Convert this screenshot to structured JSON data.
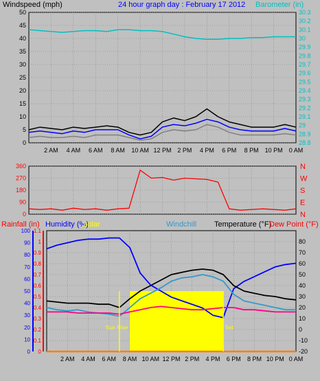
{
  "window": {
    "title": "24 hour graph day : February 17 2012",
    "colors": {
      "background": "#c0c0c0",
      "panel": "#000000",
      "grid": "#808080"
    }
  },
  "chart_data": [
    {
      "type": "line",
      "ylabel_left": "Windspeed (mph)",
      "ylabel_right": "Barometer (in)",
      "x": [
        "12 AM",
        "1 AM",
        "2 AM",
        "3 AM",
        "4 AM",
        "5 AM",
        "6 AM",
        "7 AM",
        "8 AM",
        "9 AM",
        "10 AM",
        "11 AM",
        "12 PM",
        "1 PM",
        "2 PM",
        "3 PM",
        "4 PM",
        "5 PM",
        "6 PM",
        "7 PM",
        "8 PM",
        "9 PM",
        "10 PM",
        "11 PM",
        "12 AM"
      ],
      "x_tick_labels": [
        "2 AM",
        "4 AM",
        "6 AM",
        "8 AM",
        "10 AM",
        "12 PM",
        "2 PM",
        "4 PM",
        "6 PM",
        "8 PM",
        "10 PM",
        "0 AM"
      ],
      "ylim_left": [
        0,
        50
      ],
      "left_ticks": [
        0,
        5,
        10,
        15,
        20,
        25,
        30,
        35,
        40,
        45,
        50
      ],
      "ylim_right": [
        28.8,
        30.3
      ],
      "right_ticks": [
        "28.8",
        "28.9",
        "29",
        "29.1",
        "29.2",
        "29.3",
        "29.4",
        "29.5",
        "29.6",
        "29.7",
        "29.8",
        "29.9",
        "30",
        "30.1",
        "30.2",
        "30.3"
      ],
      "grid": true,
      "series": [
        {
          "color": "#000000",
          "axis": "left",
          "values": [
            5,
            6,
            5.5,
            5,
            6,
            5.5,
            6,
            6.5,
            6,
            4,
            3,
            4,
            8,
            9.5,
            8.5,
            10,
            13,
            10,
            8,
            7,
            6,
            6,
            6,
            7,
            6
          ]
        },
        {
          "color": "#0000ff",
          "axis": "left",
          "values": [
            4,
            4.5,
            4,
            3.5,
            4.5,
            4,
            5,
            5,
            5,
            3,
            1.5,
            2.5,
            6,
            7,
            6.5,
            7.5,
            9,
            8,
            6,
            5,
            4.5,
            4.5,
            4.5,
            5.5,
            4.5
          ]
        },
        {
          "color": "#808080",
          "axis": "left",
          "values": [
            2,
            2.5,
            2,
            2,
            2.5,
            2,
            3,
            3,
            3,
            2,
            1,
            1.5,
            4,
            5,
            4.5,
            5,
            7,
            6,
            4,
            3,
            3,
            3,
            3,
            3.5,
            3
          ]
        },
        {
          "color": "#00c0c0",
          "axis": "right",
          "values": [
            30.1,
            30.09,
            30.08,
            30.07,
            30.08,
            30.09,
            30.09,
            30.08,
            30.1,
            30.1,
            30.09,
            30.09,
            30.08,
            30.05,
            30.02,
            30,
            29.99,
            29.99,
            30,
            30,
            30.01,
            30.01,
            30.02,
            30.02,
            30.02
          ]
        }
      ]
    },
    {
      "type": "line",
      "ylim_left": [
        0,
        360
      ],
      "left_ticks": [
        0,
        90,
        180,
        270,
        360
      ],
      "right_labels": [
        "N",
        "W",
        "S",
        "E",
        "N"
      ],
      "x": [
        "12 AM",
        "1 AM",
        "2 AM",
        "3 AM",
        "4 AM",
        "5 AM",
        "6 AM",
        "7 AM",
        "8 AM",
        "9 AM",
        "10 AM",
        "11 AM",
        "12 PM",
        "1 PM",
        "2 PM",
        "3 PM",
        "4 PM",
        "5 PM",
        "6 PM",
        "7 PM",
        "8 PM",
        "9 PM",
        "10 PM",
        "11 PM",
        "12 AM"
      ],
      "series": [
        {
          "color": "#ff0000",
          "values": [
            40,
            35,
            40,
            30,
            45,
            35,
            40,
            30,
            40,
            45,
            330,
            270,
            275,
            255,
            270,
            265,
            260,
            240,
            40,
            30,
            35,
            40,
            35,
            30,
            40
          ]
        }
      ]
    },
    {
      "type": "line",
      "labels": {
        "rainfall": "Rainfall (in)",
        "humidity": "Humidity (%)",
        "solar": "Solar",
        "windchill": "Windchill",
        "temperature": "Temperature (°F)",
        "dewpoint": "Dew Point (°F)",
        "sunrise": "Sun Rise",
        "sunset": "Sun Set"
      },
      "axis_humidity": [
        0,
        100
      ],
      "humidity_ticks": [
        0,
        10,
        20,
        30,
        40,
        50,
        60,
        70,
        80,
        90,
        100
      ],
      "axis_rainfall": [
        0,
        1.1
      ],
      "rainfall_ticks": [
        "0",
        "0.1",
        "0.2",
        "0.3",
        "0.4",
        "0.5",
        "0.6",
        "0.7",
        "0.8",
        "0.9",
        "1",
        "1.1"
      ],
      "axis_temperature": [
        -20,
        90
      ],
      "temperature_ticks": [
        -20,
        -10,
        0,
        10,
        20,
        30,
        40,
        50,
        60,
        70,
        80
      ],
      "sunrise_time": "7 AM",
      "sunset_time": "5 PM",
      "x": [
        "12 AM",
        "1 AM",
        "2 AM",
        "3 AM",
        "4 AM",
        "5 AM",
        "6 AM",
        "7 AM",
        "8 AM",
        "9 AM",
        "10 AM",
        "11 AM",
        "12 PM",
        "1 PM",
        "2 PM",
        "3 PM",
        "4 PM",
        "5 PM",
        "6 PM",
        "7 PM",
        "8 PM",
        "9 PM",
        "10 PM",
        "11 PM",
        "12 AM"
      ],
      "series": [
        {
          "color": "#0000ff",
          "axis": "humidity",
          "values": [
            85,
            88,
            90,
            92,
            93,
            93,
            94,
            94,
            86,
            65,
            55,
            50,
            45,
            42,
            39,
            36,
            30,
            28,
            52,
            58,
            62,
            66,
            70,
            72,
            73
          ]
        },
        {
          "color": "#000000",
          "axis": "temperature",
          "values": [
            26,
            25,
            24,
            24,
            24,
            23,
            23,
            20,
            28,
            35,
            40,
            45,
            50,
            52,
            54,
            55,
            54,
            50,
            40,
            35,
            33,
            31,
            30,
            28,
            27
          ]
        },
        {
          "color": "#3399cc",
          "axis": "temperature",
          "values": [
            20,
            18,
            17,
            18,
            16,
            15,
            14,
            12,
            20,
            28,
            33,
            38,
            44,
            47,
            48,
            50,
            48,
            44,
            32,
            26,
            24,
            22,
            20,
            18,
            18
          ]
        },
        {
          "color": "#ff0080",
          "axis": "temperature",
          "values": [
            16,
            16,
            16,
            15,
            15,
            15,
            15,
            14,
            16,
            18,
            20,
            21,
            20,
            19,
            18,
            18,
            19,
            20,
            20,
            18,
            18,
            17,
            16,
            16,
            16
          ]
        },
        {
          "color": "#ffff00",
          "axis": "humidity",
          "values": [
            0,
            0,
            0,
            0,
            0,
            0,
            0,
            0,
            50,
            50,
            50,
            50,
            50,
            50,
            50,
            50,
            50,
            0,
            0,
            0,
            0,
            0,
            0,
            0,
            0
          ]
        },
        {
          "color": "#ff8000",
          "axis": "rainfall",
          "values": [
            0,
            0,
            0,
            0,
            0,
            0,
            0,
            0,
            0,
            0,
            0,
            0,
            0,
            0,
            0,
            0,
            0,
            0,
            0,
            0,
            0,
            0,
            0,
            0,
            0
          ]
        }
      ]
    }
  ]
}
